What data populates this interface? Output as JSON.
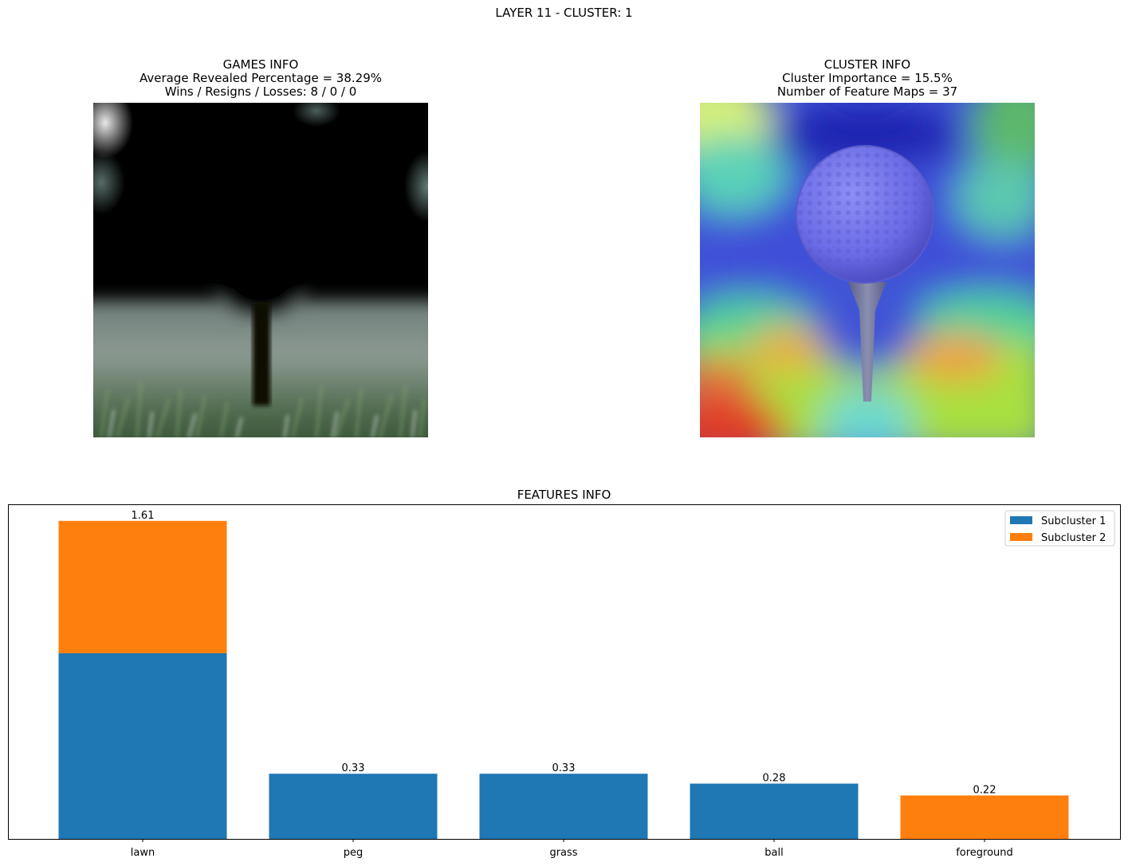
{
  "suptitle": "LAYER 11 - CLUSTER: 1",
  "games_info": {
    "title": "GAMES INFO",
    "line1": "Average Revealed Percentage = 38.29%",
    "line2": "Wins / Resigns / Losses: 8 / 0 / 0"
  },
  "cluster_info": {
    "title": "CLUSTER INFO",
    "line1": "Cluster Importance = 15.5%",
    "line2": "Number of Feature Maps = 37"
  },
  "chart_data": {
    "type": "bar",
    "stacked": true,
    "title": "FEATURES INFO",
    "xlabel": "",
    "ylabel": "",
    "categories": [
      "lawn",
      "peg",
      "grass",
      "ball",
      "foreground"
    ],
    "series": [
      {
        "name": "Subcluster 1",
        "color": "#1f77b4",
        "values": [
          0.94,
          0.33,
          0.33,
          0.28,
          0
        ]
      },
      {
        "name": "Subcluster 2",
        "color": "#ff7f0e",
        "values": [
          0.67,
          0,
          0,
          0,
          0.22
        ]
      }
    ],
    "totals": [
      "1.61",
      "0.33",
      "0.33",
      "0.28",
      "0.22"
    ],
    "ylim": [
      0,
      1.69
    ],
    "y_axis_ticks_visible": false,
    "grid": false,
    "legend_position": "top-right"
  }
}
